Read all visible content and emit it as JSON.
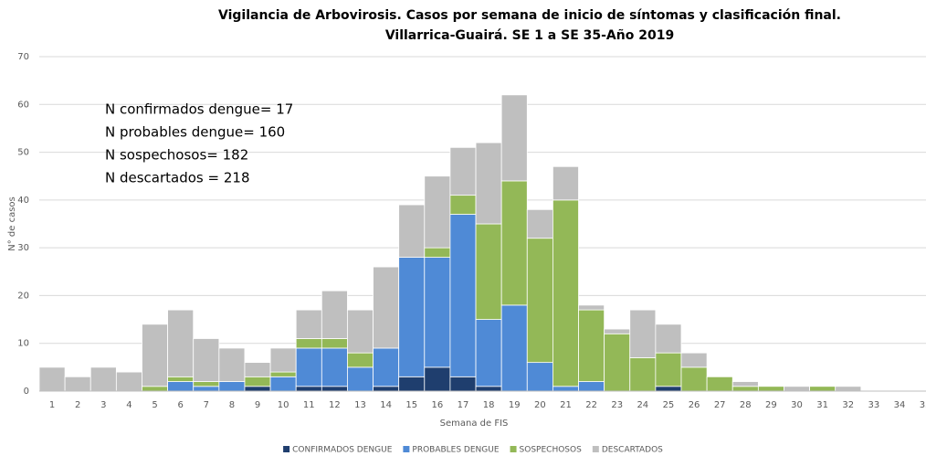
{
  "chart_data": {
    "type": "stacked-bar",
    "title": [
      "Vigilancia de Arbovirosis. Casos por semana de inicio de síntomas y clasificación final.",
      "Villarrica-Guairá. SE 1 a SE 35-Año 2019"
    ],
    "x_label": "Semana de FIS",
    "y_label": "N° de casos",
    "annotations": [
      "N confirmados dengue= 17",
      "N probables dengue= 160",
      "N sospechosos= 182",
      "N descartados = 218"
    ],
    "categories": [
      "1",
      "2",
      "3",
      "4",
      "5",
      "6",
      "7",
      "8",
      "9",
      "10",
      "11",
      "12",
      "13",
      "14",
      "15",
      "16",
      "17",
      "18",
      "19",
      "20",
      "21",
      "22",
      "23",
      "24",
      "25",
      "26",
      "27",
      "28",
      "29",
      "30",
      "31",
      "32",
      "33",
      "34",
      "35"
    ],
    "series": [
      {
        "name": "CONFIRMADOS DENGUE",
        "color": "#1f3e6e",
        "values": [
          0,
          0,
          0,
          0,
          0,
          0,
          0,
          0,
          1,
          0,
          1,
          1,
          0,
          1,
          3,
          5,
          3,
          1,
          0,
          0,
          0,
          0,
          0,
          0,
          1,
          0,
          0,
          0,
          0,
          0,
          0,
          0,
          0,
          0,
          0
        ]
      },
      {
        "name": "PROBABLES DENGUE",
        "color": "#4f8ad6",
        "values": [
          0,
          0,
          0,
          0,
          0,
          2,
          1,
          2,
          0,
          3,
          8,
          8,
          5,
          8,
          25,
          23,
          34,
          14,
          18,
          6,
          1,
          2,
          0,
          0,
          0,
          0,
          0,
          0,
          0,
          0,
          0,
          0,
          0,
          0,
          0
        ]
      },
      {
        "name": "SOSPECHOSOS",
        "color": "#93b857",
        "values": [
          0,
          0,
          0,
          0,
          1,
          1,
          1,
          0,
          2,
          1,
          2,
          2,
          3,
          0,
          0,
          2,
          4,
          20,
          26,
          26,
          39,
          15,
          12,
          7,
          7,
          5,
          3,
          1,
          1,
          0,
          1,
          0,
          0,
          0,
          0
        ]
      },
      {
        "name": "DESCARTADOS",
        "color": "#bfbfbf",
        "values": [
          5,
          3,
          5,
          4,
          13,
          14,
          9,
          7,
          3,
          5,
          6,
          10,
          9,
          17,
          11,
          15,
          10,
          17,
          18,
          6,
          7,
          1,
          1,
          10,
          6,
          3,
          0,
          1,
          0,
          1,
          0,
          1,
          0,
          0,
          0
        ]
      }
    ],
    "ylim": [
      0,
      70
    ],
    "yticks": [
      0,
      10,
      20,
      30,
      40,
      50,
      60,
      70
    ],
    "grid": true,
    "legend": "bottom"
  }
}
